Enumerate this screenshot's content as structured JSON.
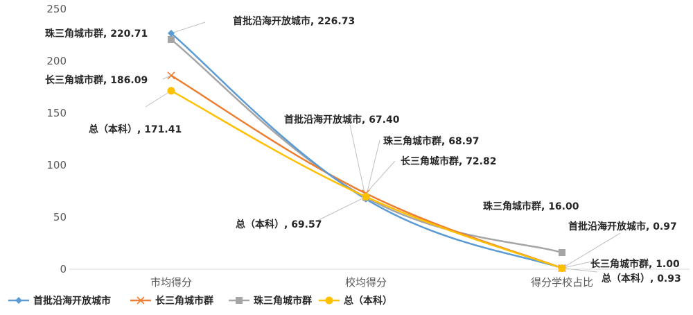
{
  "chart_data": {
    "type": "line",
    "categories": [
      "市均得分",
      "校均得分",
      "得分学校占比"
    ],
    "ylim": [
      0,
      250
    ],
    "yticks": [
      0,
      50,
      100,
      150,
      200,
      250
    ],
    "grid": false,
    "legend_position": "bottom-left",
    "series": [
      {
        "name": "首批沿海开放城市",
        "color": "#5B9BD5",
        "marker": "diamond",
        "values": [
          226.73,
          67.4,
          0.97
        ],
        "labels": [
          "首批沿海开放城市, 226.73",
          "首批沿海开放城市, 67.40",
          "首批沿海开放城市, 0.97"
        ]
      },
      {
        "name": "长三角城市群",
        "color": "#ED7D31",
        "marker": "x",
        "values": [
          186.09,
          72.82,
          1.0
        ],
        "labels": [
          "长三角城市群, 186.09",
          "长三角城市群, 72.82",
          "长三角城市群, 1.00"
        ]
      },
      {
        "name": "珠三角城市群",
        "color": "#A5A5A5",
        "marker": "square",
        "values": [
          220.71,
          68.97,
          16.0
        ],
        "labels": [
          "珠三角城市群, 220.71",
          "珠三角城市群, 68.97",
          "珠三角城市群, 16.00"
        ]
      },
      {
        "name": "总（本科）",
        "color": "#FFC000",
        "marker": "circle",
        "values": [
          171.41,
          69.57,
          0.93
        ],
        "labels": [
          "总（本科）, 171.41",
          "总（本科）, 69.57",
          "总（本科）, 0.93"
        ]
      }
    ]
  }
}
